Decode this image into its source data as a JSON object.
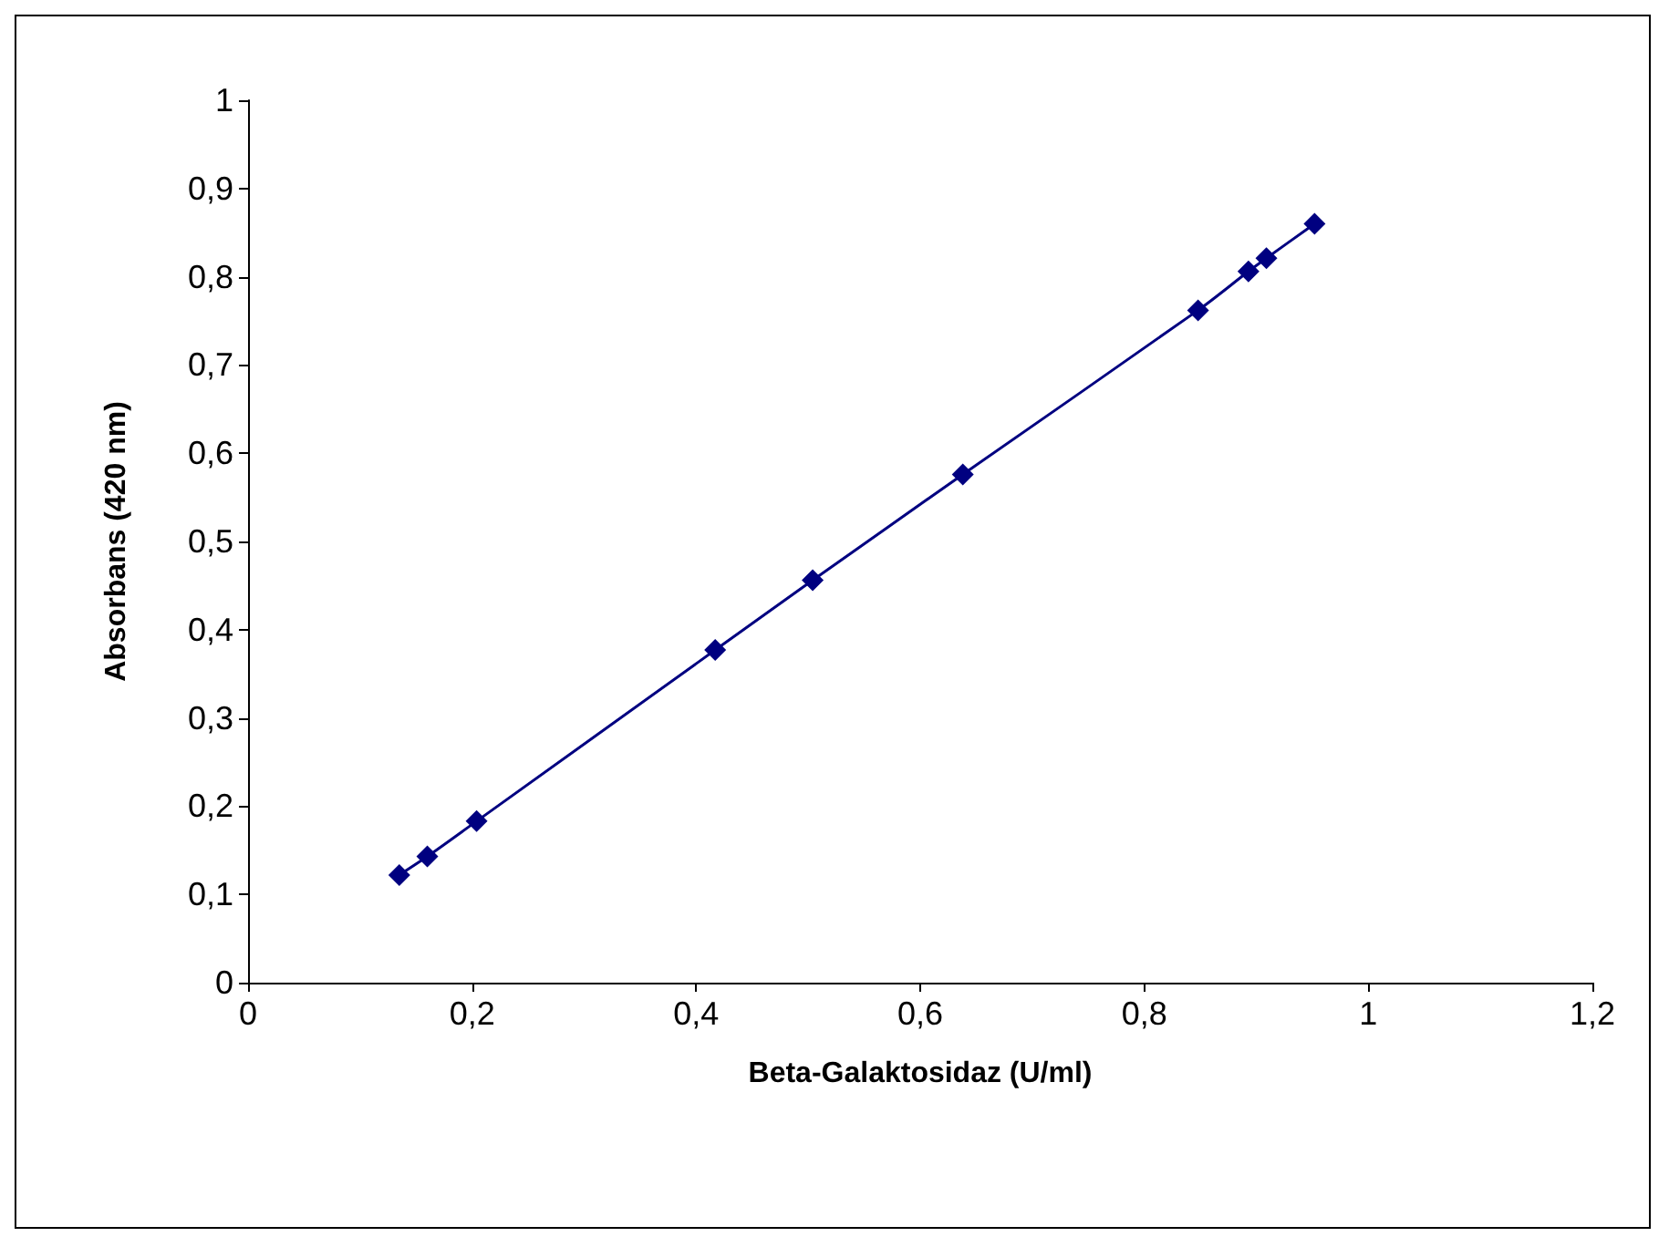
{
  "chart_data": {
    "type": "line",
    "xlabel": "Beta-Galaktosidaz (U/ml)",
    "ylabel": "Absorbans (420 nm)",
    "x": [
      0.135,
      0.16,
      0.204,
      0.417,
      0.504,
      0.638,
      0.848,
      0.893,
      0.909,
      0.952
    ],
    "series": [
      {
        "color": "#000080",
        "values": [
          0.122,
          0.143,
          0.183,
          0.377,
          0.456,
          0.576,
          0.762,
          0.806,
          0.821,
          0.86
        ]
      }
    ],
    "xlim": [
      0,
      1.2
    ],
    "ylim": [
      0,
      1
    ],
    "xticks": [
      0,
      {
        "value": 0.2,
        "label": "0,2"
      },
      {
        "value": 0.4,
        "label": "0,4"
      },
      {
        "value": 0.6,
        "label": "0,6"
      },
      {
        "value": 0.8,
        "label": "0,8"
      },
      1,
      {
        "value": 1.2,
        "label": "1,2"
      }
    ],
    "yticks": [
      0,
      {
        "value": 0.1,
        "label": "0,1"
      },
      {
        "value": 0.2,
        "label": "0,2"
      },
      {
        "value": 0.3,
        "label": "0,3"
      },
      {
        "value": 0.4,
        "label": "0,4"
      },
      {
        "value": 0.5,
        "label": "0,5"
      },
      {
        "value": 0.6,
        "label": "0,6"
      },
      {
        "value": 0.7,
        "label": "0,7"
      },
      {
        "value": 0.8,
        "label": "0,8"
      },
      {
        "value": 0.9,
        "label": "0,9"
      },
      1
    ],
    "grid": false,
    "marker": "diamond",
    "line_style": "solid"
  }
}
